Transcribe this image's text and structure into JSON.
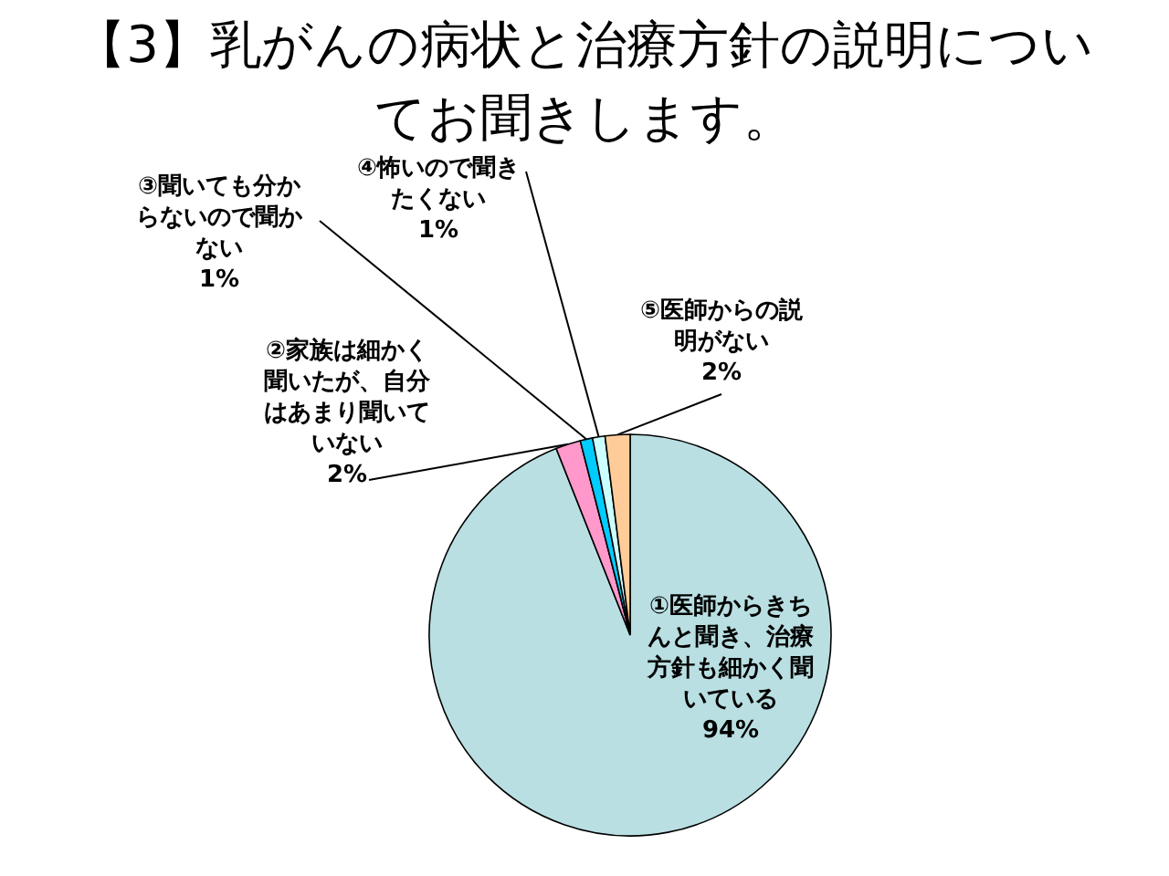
{
  "chart_data": {
    "type": "pie",
    "title": "【3】乳がんの病状と治療方針の説明についてお聞きします。",
    "categories": [
      "①医師からきちんと聞き、治療方針も細かく聞いている",
      "②家族は細かく聞いたが、自分はあまり聞いていない",
      "③聞いても分からないので聞かない",
      "④怖いので聞きたくない",
      "⑤医師からの説明がない"
    ],
    "values": [
      94,
      2,
      1,
      1,
      2
    ],
    "colors": [
      "#b9dfe2",
      "#ff99cc",
      "#00ccff",
      "#ccffff",
      "#ffcc99"
    ],
    "value_labels": [
      "94%",
      "2%",
      "1%",
      "1%",
      "2%"
    ]
  }
}
